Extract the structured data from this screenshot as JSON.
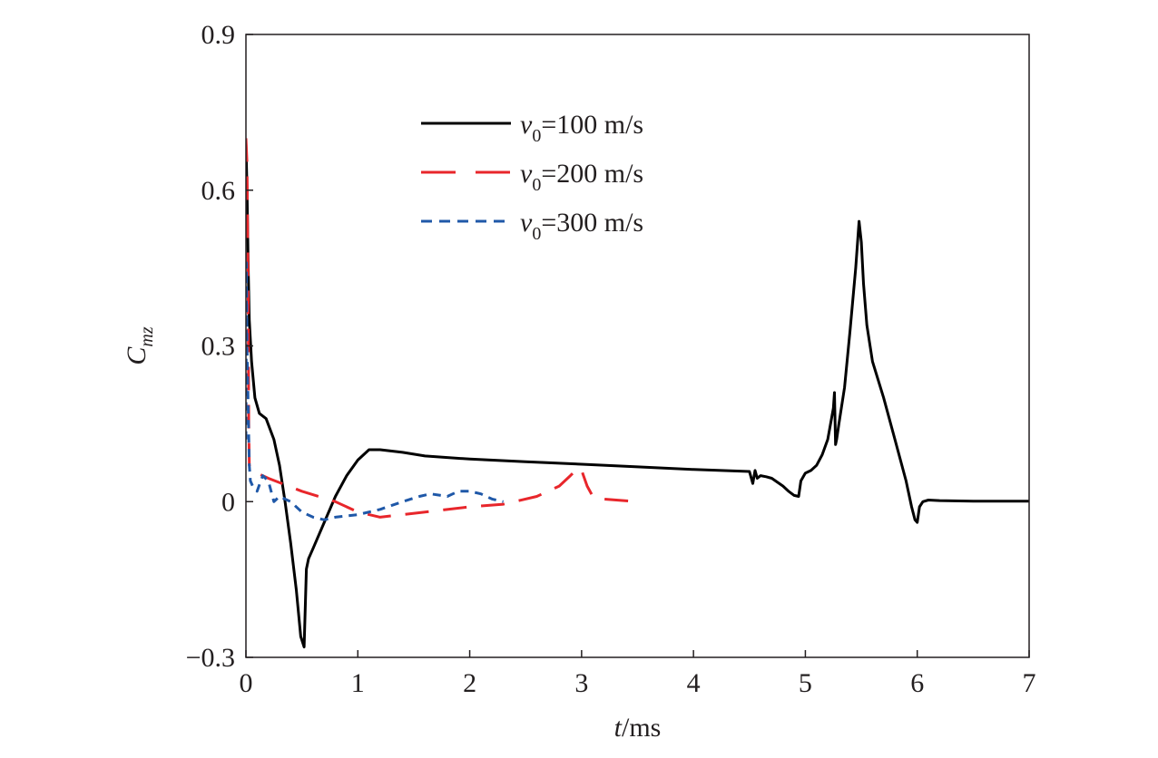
{
  "chart_data": {
    "type": "line",
    "title": "",
    "xlabel_italic": "t",
    "xlabel_rest": "/ms",
    "ylabel_main": "C",
    "ylabel_sub": "mz",
    "xlim": [
      0,
      7
    ],
    "ylim": [
      -0.3,
      0.9
    ],
    "xticks": [
      0,
      1,
      2,
      3,
      4,
      5,
      6,
      7
    ],
    "xtick_labels": [
      "0",
      "1",
      "2",
      "3",
      "4",
      "5",
      "6",
      "7"
    ],
    "yticks": [
      -0.3,
      0,
      0.3,
      0.6,
      0.9
    ],
    "ytick_labels": [
      "−0.3",
      "0",
      "0.3",
      "0.6",
      "0.9"
    ],
    "grid": false,
    "legend_position": "upper-center",
    "series": [
      {
        "label_var": "v",
        "label_sub": "0",
        "label_rest": "=100 m/s",
        "color": "#000000",
        "dash": "solid",
        "x": [
          0.0,
          0.01,
          0.02,
          0.03,
          0.05,
          0.08,
          0.12,
          0.18,
          0.25,
          0.3,
          0.35,
          0.4,
          0.45,
          0.49,
          0.52,
          0.54,
          0.56,
          0.6,
          0.7,
          0.8,
          0.9,
          1.0,
          1.1,
          1.2,
          1.4,
          1.6,
          2.0,
          2.5,
          3.0,
          3.5,
          4.0,
          4.5,
          4.53,
          4.55,
          4.57,
          4.6,
          4.65,
          4.7,
          4.8,
          4.85,
          4.9,
          4.94,
          4.96,
          5.0,
          5.05,
          5.1,
          5.15,
          5.2,
          5.25,
          5.26,
          5.27,
          5.28,
          5.3,
          5.35,
          5.4,
          5.45,
          5.48,
          5.5,
          5.52,
          5.55,
          5.6,
          5.7,
          5.8,
          5.9,
          5.95,
          5.98,
          6.0,
          6.02,
          6.05,
          6.1,
          6.2,
          6.5,
          7.0
        ],
        "y": [
          0.69,
          0.6,
          0.45,
          0.35,
          0.27,
          0.2,
          0.17,
          0.16,
          0.12,
          0.07,
          0.0,
          -0.08,
          -0.17,
          -0.26,
          -0.28,
          -0.13,
          -0.11,
          -0.09,
          -0.04,
          0.01,
          0.05,
          0.08,
          0.1,
          0.1,
          0.095,
          0.088,
          0.082,
          0.077,
          0.072,
          0.067,
          0.062,
          0.058,
          0.035,
          0.06,
          0.045,
          0.05,
          0.048,
          0.045,
          0.03,
          0.02,
          0.012,
          0.01,
          0.04,
          0.055,
          0.06,
          0.07,
          0.09,
          0.12,
          0.18,
          0.21,
          0.11,
          0.12,
          0.15,
          0.22,
          0.33,
          0.45,
          0.54,
          0.5,
          0.42,
          0.34,
          0.27,
          0.2,
          0.12,
          0.04,
          -0.01,
          -0.035,
          -0.04,
          -0.01,
          0.0,
          0.003,
          0.002,
          0.001,
          0.001
        ]
      },
      {
        "label_var": "v",
        "label_sub": "0",
        "label_rest": "=200 m/s",
        "color": "#e8262b",
        "dash": "long",
        "x": [
          0.0,
          0.01,
          0.02,
          0.025,
          0.03,
          0.05,
          0.2,
          0.5,
          0.8,
          1.0,
          1.2,
          1.6,
          2.0,
          2.3,
          2.6,
          2.8,
          2.9,
          2.97,
          3.0,
          3.05,
          3.1,
          3.2,
          3.5
        ],
        "y": [
          0.7,
          0.65,
          0.4,
          0.15,
          0.07,
          0.06,
          0.045,
          0.02,
          0.0,
          -0.02,
          -0.03,
          -0.02,
          -0.01,
          -0.005,
          0.01,
          0.03,
          0.05,
          0.065,
          0.06,
          0.03,
          0.01,
          0.005,
          0.0
        ]
      },
      {
        "label_var": "v",
        "label_sub": "0",
        "label_rest": "=300 m/s",
        "color": "#1f58a8",
        "dash": "short",
        "x": [
          0.0,
          0.005,
          0.01,
          0.02,
          0.03,
          0.04,
          0.06,
          0.1,
          0.15,
          0.2,
          0.25,
          0.3,
          0.4,
          0.5,
          0.6,
          0.7,
          0.8,
          1.0,
          1.2,
          1.4,
          1.55,
          1.65,
          1.8,
          1.9,
          2.0,
          2.1,
          2.2,
          2.3
        ],
        "y": [
          0.12,
          0.46,
          0.3,
          0.18,
          0.07,
          0.04,
          0.03,
          0.02,
          0.05,
          0.04,
          0.0,
          0.01,
          0.0,
          -0.02,
          -0.03,
          -0.035,
          -0.03,
          -0.025,
          -0.015,
          0.0,
          0.01,
          0.015,
          0.01,
          0.02,
          0.02,
          0.015,
          0.005,
          0.0
        ]
      }
    ]
  }
}
